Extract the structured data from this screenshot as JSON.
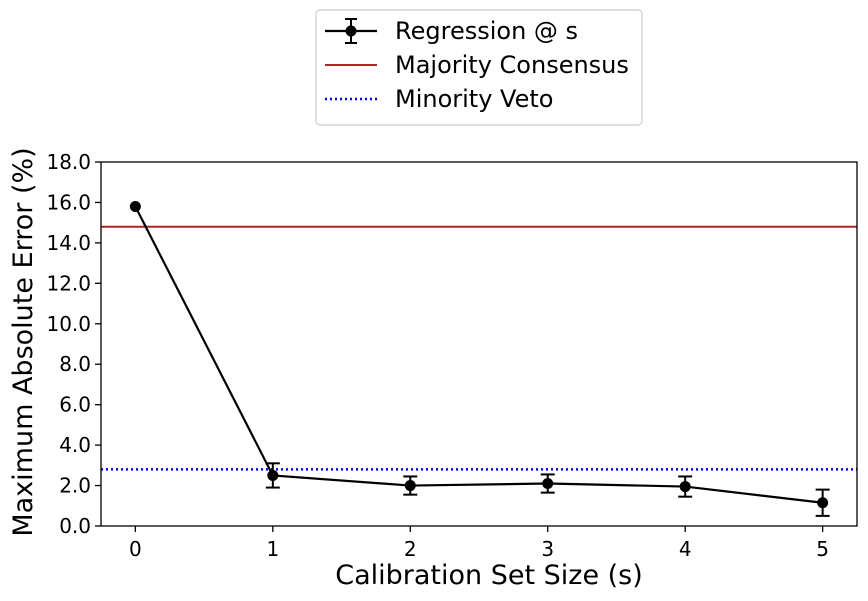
{
  "chart_data": {
    "type": "line",
    "xlabel": "Calibration Set Size (s)",
    "ylabel": "Maximum Absolute Error (%)",
    "xlim": [
      -0.25,
      5.25
    ],
    "ylim": [
      0,
      18
    ],
    "xticks": [
      0,
      1,
      2,
      3,
      4,
      5
    ],
    "xtick_labels": [
      "0",
      "1",
      "2",
      "3",
      "4",
      "5"
    ],
    "yticks": [
      0,
      2,
      4,
      6,
      8,
      10,
      12,
      14,
      16,
      18
    ],
    "ytick_labels": [
      "0.0",
      "2.0",
      "4.0",
      "6.0",
      "8.0",
      "10.0",
      "12.0",
      "14.0",
      "16.0",
      "18.0"
    ],
    "series": [
      {
        "name": "Regression @ s",
        "kind": "errorbar",
        "color": "#000000",
        "x": [
          0,
          1,
          2,
          3,
          4,
          5
        ],
        "y": [
          15.8,
          2.5,
          2.0,
          2.1,
          1.95,
          1.15
        ],
        "yerr": [
          0,
          0.6,
          0.45,
          0.45,
          0.5,
          0.65
        ]
      },
      {
        "name": "Majority Consensus",
        "kind": "hline",
        "color": "#b22222",
        "style": "solid",
        "y": 14.8
      },
      {
        "name": "Minority Veto",
        "kind": "hline",
        "color": "#0000ee",
        "style": "dotted",
        "y": 2.8
      }
    ],
    "legend": {
      "placement": "top-center",
      "entries": [
        "Regression @ s",
        "Majority Consensus",
        "Minority Veto"
      ]
    },
    "grid": false
  }
}
